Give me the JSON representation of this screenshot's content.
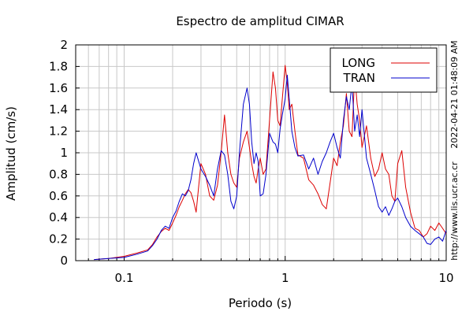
{
  "chart_data": {
    "type": "line",
    "title": "Espectro de amplitud CIMAR",
    "xlabel": "Periodo (s)",
    "ylabel": "Amplitud (cm/s)",
    "xscale": "log",
    "xlim": [
      0.05,
      10
    ],
    "ylim": [
      0,
      2
    ],
    "x_ticks": [
      0.1,
      1,
      10
    ],
    "x_tick_labels": [
      "0.1",
      "1",
      "10"
    ],
    "y_ticks": [
      0,
      0.2,
      0.4,
      0.6,
      0.8,
      1,
      1.2,
      1.4,
      1.6,
      1.8,
      2
    ],
    "y_tick_labels": [
      "0",
      "0.2",
      "0.4",
      "0.6",
      "0.8",
      "1",
      "1.2",
      "1.4",
      "1.6",
      "1.8",
      "2"
    ],
    "grid": true,
    "legend_position": "top-right",
    "side_notes": [
      "2022-04-21 01:48:09 AM",
      "http://www.lis.ucr.ac.cr"
    ],
    "series": [
      {
        "name": "LONG",
        "color": "#dd0000",
        "x": [
          0.065,
          0.08,
          0.1,
          0.12,
          0.14,
          0.15,
          0.16,
          0.17,
          0.18,
          0.19,
          0.2,
          0.21,
          0.22,
          0.23,
          0.24,
          0.25,
          0.26,
          0.27,
          0.28,
          0.3,
          0.32,
          0.34,
          0.36,
          0.38,
          0.4,
          0.42,
          0.44,
          0.46,
          0.48,
          0.5,
          0.52,
          0.55,
          0.58,
          0.6,
          0.62,
          0.64,
          0.66,
          0.68,
          0.7,
          0.73,
          0.76,
          0.8,
          0.84,
          0.87,
          0.9,
          0.93,
          0.96,
          1.0,
          1.03,
          1.06,
          1.1,
          1.15,
          1.2,
          1.3,
          1.4,
          1.5,
          1.6,
          1.7,
          1.8,
          1.9,
          2.0,
          2.1,
          2.2,
          2.3,
          2.4,
          2.5,
          2.6,
          2.7,
          2.8,
          2.9,
          3.0,
          3.2,
          3.4,
          3.6,
          3.8,
          4.0,
          4.2,
          4.4,
          4.6,
          4.8,
          5.0,
          5.3,
          5.6,
          6.0,
          6.4,
          6.8,
          7.2,
          7.6,
          8.0,
          8.5,
          9.0,
          9.5,
          10.0
        ],
        "values": [
          0.01,
          0.02,
          0.04,
          0.07,
          0.1,
          0.15,
          0.22,
          0.27,
          0.3,
          0.28,
          0.35,
          0.42,
          0.5,
          0.56,
          0.62,
          0.66,
          0.63,
          0.55,
          0.45,
          0.9,
          0.8,
          0.6,
          0.56,
          0.7,
          1.0,
          1.35,
          1.0,
          0.8,
          0.72,
          0.68,
          0.95,
          1.1,
          1.2,
          1.05,
          0.9,
          0.78,
          0.72,
          0.85,
          0.95,
          0.8,
          0.85,
          1.3,
          1.75,
          1.6,
          1.3,
          1.25,
          1.5,
          1.81,
          1.65,
          1.4,
          1.45,
          1.2,
          0.98,
          0.95,
          0.75,
          0.7,
          0.62,
          0.52,
          0.48,
          0.72,
          0.95,
          0.88,
          1.1,
          1.25,
          1.55,
          1.2,
          1.15,
          1.72,
          1.45,
          1.3,
          1.05,
          1.25,
          0.95,
          0.78,
          0.85,
          1.0,
          0.85,
          0.8,
          0.6,
          0.55,
          0.9,
          1.02,
          0.68,
          0.45,
          0.3,
          0.28,
          0.22,
          0.25,
          0.32,
          0.28,
          0.35,
          0.3,
          0.25
        ]
      },
      {
        "name": "TRAN",
        "color": "#0000cc",
        "x": [
          0.065,
          0.08,
          0.1,
          0.12,
          0.14,
          0.15,
          0.16,
          0.17,
          0.18,
          0.19,
          0.2,
          0.21,
          0.22,
          0.23,
          0.24,
          0.25,
          0.26,
          0.27,
          0.28,
          0.3,
          0.32,
          0.34,
          0.36,
          0.38,
          0.4,
          0.42,
          0.44,
          0.46,
          0.48,
          0.5,
          0.52,
          0.55,
          0.58,
          0.6,
          0.62,
          0.64,
          0.66,
          0.68,
          0.7,
          0.73,
          0.76,
          0.8,
          0.84,
          0.87,
          0.9,
          0.93,
          0.96,
          1.0,
          1.03,
          1.06,
          1.1,
          1.15,
          1.2,
          1.3,
          1.4,
          1.5,
          1.6,
          1.7,
          1.8,
          1.9,
          2.0,
          2.1,
          2.2,
          2.3,
          2.4,
          2.5,
          2.6,
          2.7,
          2.8,
          2.9,
          3.0,
          3.2,
          3.4,
          3.6,
          3.8,
          4.0,
          4.2,
          4.4,
          4.6,
          4.8,
          5.0,
          5.3,
          5.6,
          6.0,
          6.4,
          6.8,
          7.2,
          7.6,
          8.0,
          8.5,
          9.0,
          9.5,
          10.0
        ],
        "values": [
          0.01,
          0.02,
          0.03,
          0.06,
          0.09,
          0.14,
          0.2,
          0.28,
          0.32,
          0.3,
          0.4,
          0.46,
          0.55,
          0.62,
          0.6,
          0.65,
          0.75,
          0.9,
          1.0,
          0.85,
          0.78,
          0.7,
          0.6,
          0.85,
          1.02,
          0.98,
          0.8,
          0.55,
          0.48,
          0.6,
          1.0,
          1.45,
          1.6,
          1.45,
          1.1,
          0.9,
          1.0,
          0.92,
          0.6,
          0.62,
          0.8,
          1.18,
          1.1,
          1.08,
          1.0,
          1.22,
          1.35,
          1.5,
          1.72,
          1.5,
          1.2,
          1.05,
          0.97,
          0.98,
          0.85,
          0.95,
          0.8,
          0.92,
          1.0,
          1.1,
          1.18,
          1.05,
          0.95,
          1.3,
          1.52,
          1.4,
          1.65,
          1.2,
          1.35,
          1.15,
          1.4,
          0.95,
          0.8,
          0.65,
          0.5,
          0.45,
          0.5,
          0.42,
          0.48,
          0.55,
          0.58,
          0.5,
          0.4,
          0.32,
          0.28,
          0.25,
          0.22,
          0.16,
          0.15,
          0.2,
          0.22,
          0.18,
          0.28
        ]
      }
    ]
  }
}
